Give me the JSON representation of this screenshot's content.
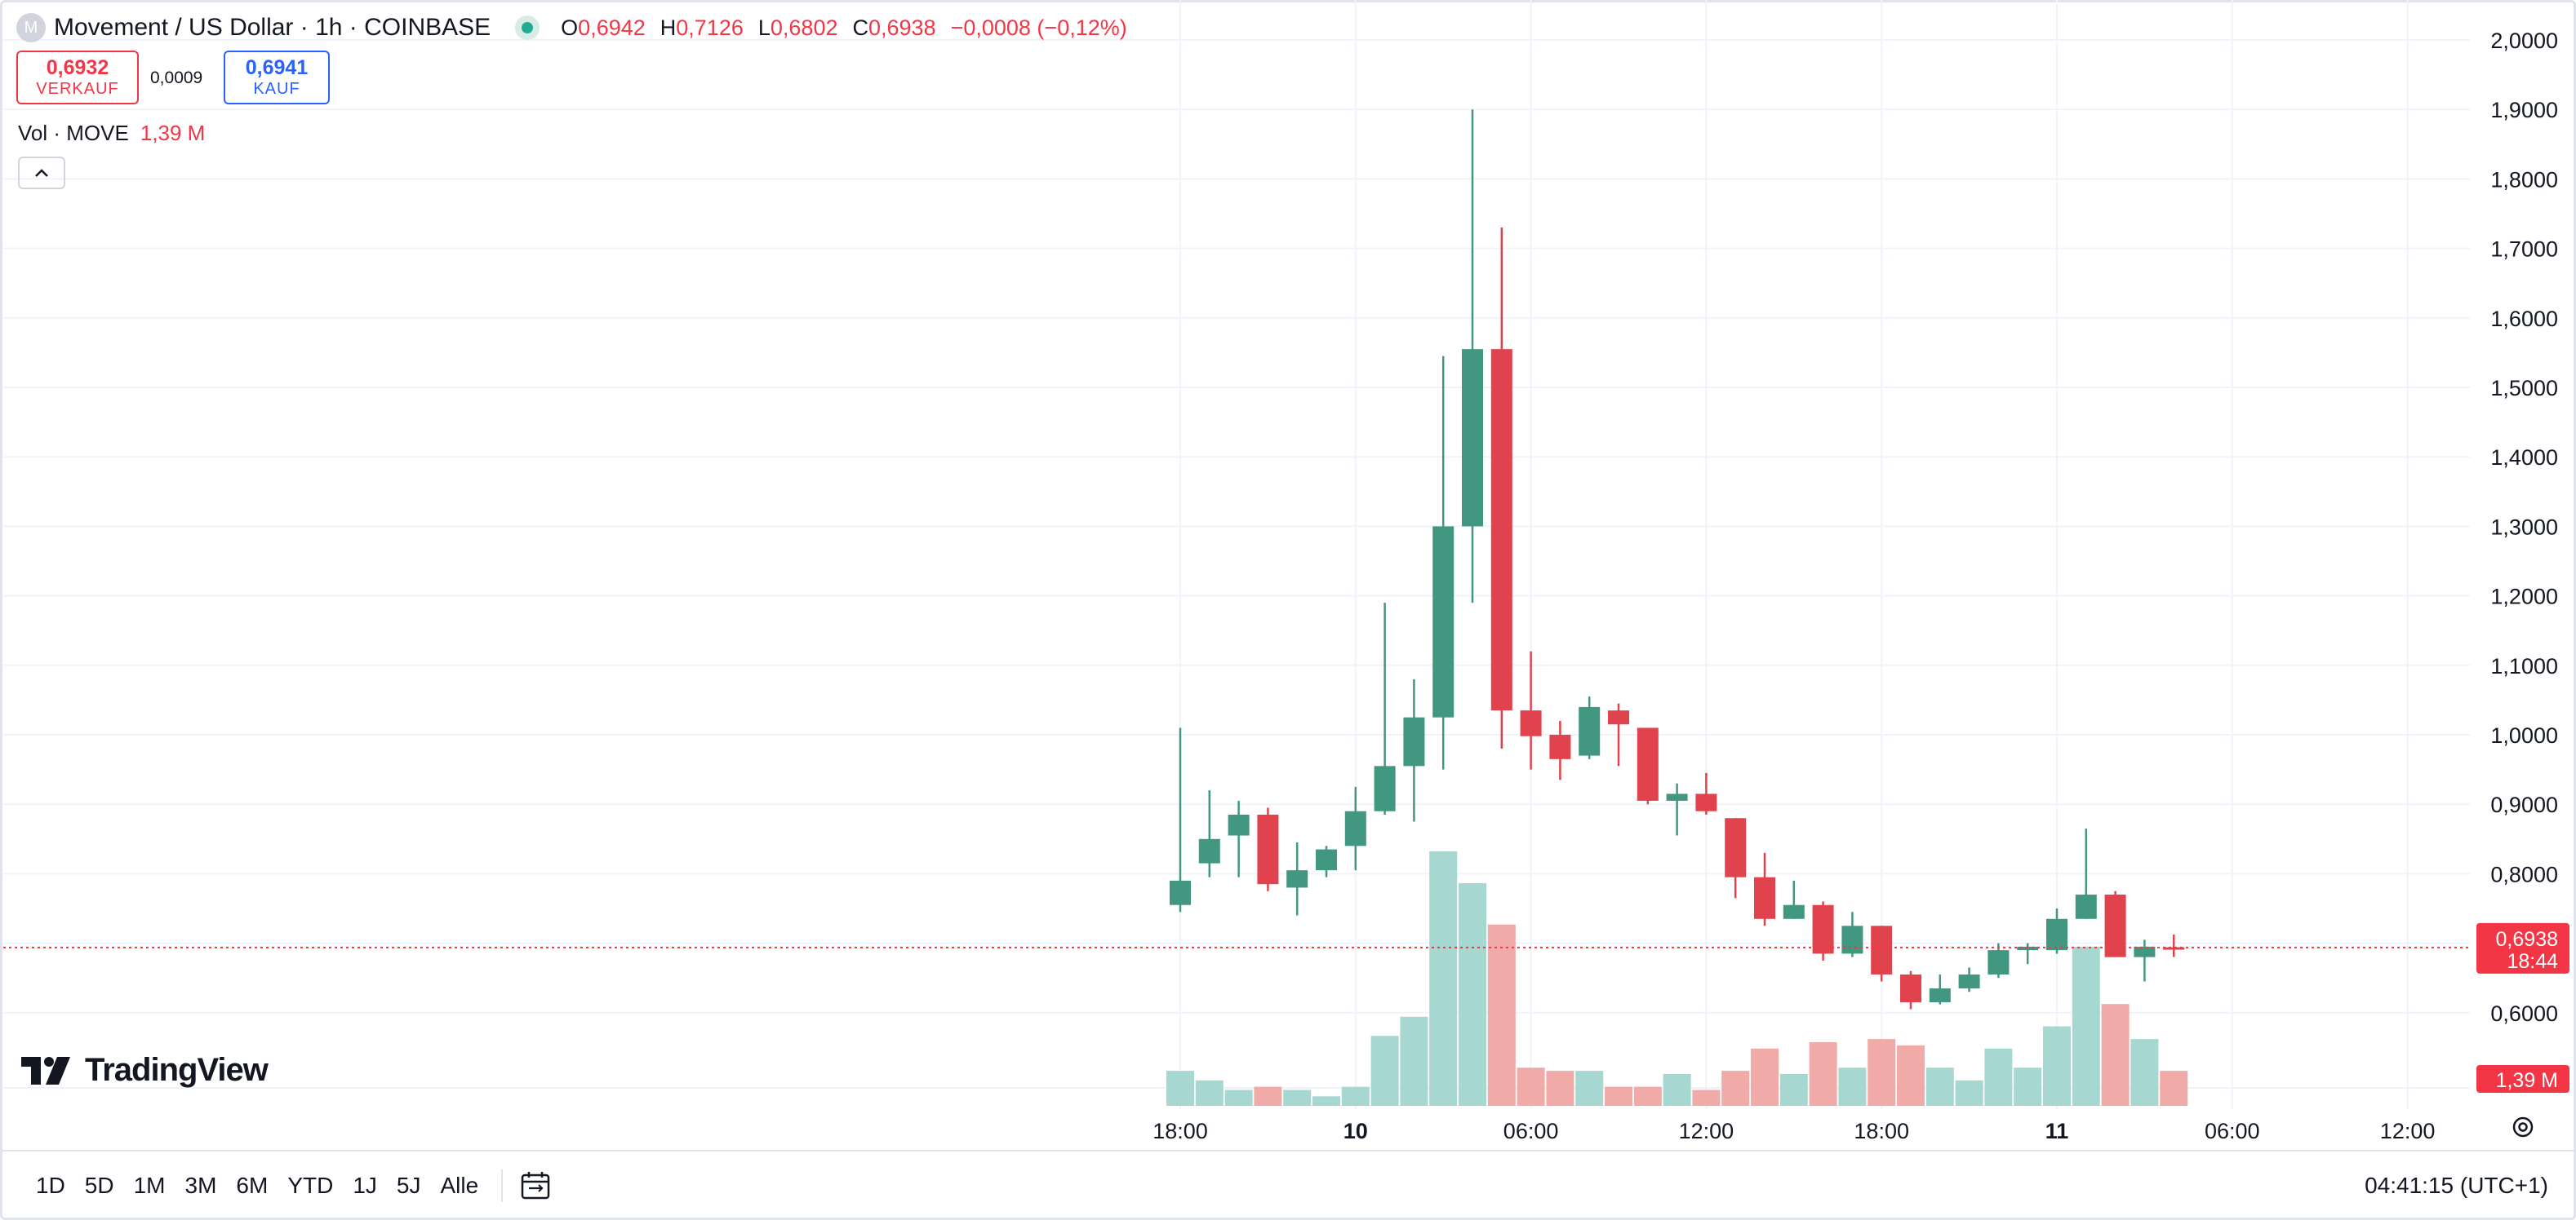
{
  "header": {
    "logo_letter": "M",
    "title": "Movement / US Dollar · 1h · COINBASE",
    "ohlc": [
      {
        "key": "O",
        "value": "0,6942"
      },
      {
        "key": "H",
        "value": "0,7126"
      },
      {
        "key": "L",
        "value": "0,6802"
      },
      {
        "key": "C",
        "value": "0,6938"
      }
    ],
    "change": "−0,0008 (−0,12%)"
  },
  "trade": {
    "sell_price": "0,6932",
    "sell_label": "VERKAUF",
    "spread": "0,0009",
    "buy_price": "0,6941",
    "buy_label": "KAUF"
  },
  "volume_legend": {
    "label": "Vol · MOVE",
    "value": "1,39 M"
  },
  "brand": "TradingView",
  "price_axis": {
    "ticks": [
      "2,0000",
      "1,9000",
      "1,8000",
      "1,7000",
      "1,6000",
      "1,5000",
      "1,4000",
      "1,3000",
      "1,2000",
      "1,1000",
      "1,0000",
      "0,9000",
      "0,8000",
      "0,6000"
    ],
    "last_price_label": "0,6938",
    "countdown": "18:44",
    "volume_label": "1,39 M"
  },
  "time_axis": {
    "labels": [
      {
        "text": "18:00",
        "bold": false
      },
      {
        "text": "10",
        "bold": true
      },
      {
        "text": "06:00",
        "bold": false
      },
      {
        "text": "12:00",
        "bold": false
      },
      {
        "text": "18:00",
        "bold": false
      },
      {
        "text": "11",
        "bold": true
      },
      {
        "text": "06:00",
        "bold": false
      },
      {
        "text": "12:00",
        "bold": false
      }
    ]
  },
  "bottom_bar": {
    "ranges": [
      "1D",
      "5D",
      "1M",
      "3M",
      "6M",
      "YTD",
      "1J",
      "5J",
      "Alle"
    ],
    "clock": "04:41:15 (UTC+1)"
  },
  "colors": {
    "up": "#22ab94",
    "down": "#f23645",
    "up_body": "#419780",
    "down_body": "#e0434d",
    "vol_up": "#a7d7d1",
    "vol_down": "#f0aaa8",
    "grid": "#f0f3fa"
  },
  "chart_data": {
    "type": "candlestick",
    "interval": "1h",
    "y_range": [
      0.55,
      2.05
    ],
    "x_start": "2024-12-09 18:00",
    "time_points": [
      "09 18:00",
      "09 19:00",
      "09 20:00",
      "09 21:00",
      "09 22:00",
      "09 23:00",
      "10 00:00",
      "10 01:00",
      "10 02:00",
      "10 03:00",
      "10 04:00",
      "10 05:00",
      "10 06:00",
      "10 07:00",
      "10 08:00",
      "10 09:00",
      "10 10:00",
      "10 11:00",
      "10 12:00",
      "10 13:00",
      "10 14:00",
      "10 15:00",
      "10 16:00",
      "10 17:00",
      "10 18:00",
      "10 19:00",
      "10 20:00",
      "10 21:00",
      "10 22:00",
      "10 23:00",
      "11 00:00",
      "11 01:00",
      "11 02:00",
      "11 03:00",
      "11 04:00"
    ],
    "candles": [
      {
        "o": 0.755,
        "h": 1.01,
        "l": 0.745,
        "c": 0.79
      },
      {
        "o": 0.815,
        "h": 0.92,
        "l": 0.795,
        "c": 0.85
      },
      {
        "o": 0.855,
        "h": 0.905,
        "l": 0.795,
        "c": 0.885
      },
      {
        "o": 0.885,
        "h": 0.895,
        "l": 0.775,
        "c": 0.785
      },
      {
        "o": 0.78,
        "h": 0.845,
        "l": 0.74,
        "c": 0.805
      },
      {
        "o": 0.805,
        "h": 0.84,
        "l": 0.795,
        "c": 0.835
      },
      {
        "o": 0.84,
        "h": 0.925,
        "l": 0.805,
        "c": 0.89
      },
      {
        "o": 0.89,
        "h": 1.19,
        "l": 0.885,
        "c": 0.955
      },
      {
        "o": 0.955,
        "h": 1.08,
        "l": 0.875,
        "c": 1.025
      },
      {
        "o": 1.025,
        "h": 1.545,
        "l": 0.95,
        "c": 1.3
      },
      {
        "o": 1.3,
        "h": 1.9,
        "l": 1.19,
        "c": 1.555
      },
      {
        "o": 1.555,
        "h": 1.73,
        "l": 0.98,
        "c": 1.035
      },
      {
        "o": 1.035,
        "h": 1.12,
        "l": 0.95,
        "c": 0.998
      },
      {
        "o": 1.0,
        "h": 1.02,
        "l": 0.935,
        "c": 0.965
      },
      {
        "o": 0.97,
        "h": 1.055,
        "l": 0.965,
        "c": 1.04
      },
      {
        "o": 1.035,
        "h": 1.045,
        "l": 0.955,
        "c": 1.015
      },
      {
        "o": 1.01,
        "h": 1.01,
        "l": 0.9,
        "c": 0.905
      },
      {
        "o": 0.905,
        "h": 0.93,
        "l": 0.855,
        "c": 0.915
      },
      {
        "o": 0.915,
        "h": 0.945,
        "l": 0.885,
        "c": 0.89
      },
      {
        "o": 0.88,
        "h": 0.88,
        "l": 0.765,
        "c": 0.795
      },
      {
        "o": 0.795,
        "h": 0.83,
        "l": 0.725,
        "c": 0.735
      },
      {
        "o": 0.735,
        "h": 0.79,
        "l": 0.735,
        "c": 0.755
      },
      {
        "o": 0.755,
        "h": 0.76,
        "l": 0.675,
        "c": 0.685
      },
      {
        "o": 0.685,
        "h": 0.745,
        "l": 0.68,
        "c": 0.725
      },
      {
        "o": 0.725,
        "h": 0.725,
        "l": 0.645,
        "c": 0.655
      },
      {
        "o": 0.655,
        "h": 0.66,
        "l": 0.605,
        "c": 0.615
      },
      {
        "o": 0.615,
        "h": 0.655,
        "l": 0.612,
        "c": 0.635
      },
      {
        "o": 0.635,
        "h": 0.665,
        "l": 0.63,
        "c": 0.655
      },
      {
        "o": 0.655,
        "h": 0.7,
        "l": 0.65,
        "c": 0.69
      },
      {
        "o": 0.69,
        "h": 0.7,
        "l": 0.67,
        "c": 0.695
      },
      {
        "o": 0.69,
        "h": 0.75,
        "l": 0.685,
        "c": 0.735
      },
      {
        "o": 0.735,
        "h": 0.865,
        "l": 0.735,
        "c": 0.77
      },
      {
        "o": 0.77,
        "h": 0.775,
        "l": 0.68,
        "c": 0.68
      },
      {
        "o": 0.68,
        "h": 0.705,
        "l": 0.645,
        "c": 0.695
      },
      {
        "o": 0.6942,
        "h": 0.7126,
        "l": 0.6802,
        "c": 0.6938
      }
    ],
    "volume_relative": [
      0.11,
      0.08,
      0.05,
      0.06,
      0.05,
      0.03,
      0.06,
      0.22,
      0.28,
      0.8,
      0.7,
      0.57,
      0.12,
      0.11,
      0.11,
      0.06,
      0.06,
      0.1,
      0.05,
      0.11,
      0.18,
      0.1,
      0.2,
      0.12,
      0.21,
      0.19,
      0.12,
      0.08,
      0.18,
      0.12,
      0.25,
      0.5,
      0.32,
      0.21,
      0.11
    ],
    "last_price": 0.6938
  }
}
